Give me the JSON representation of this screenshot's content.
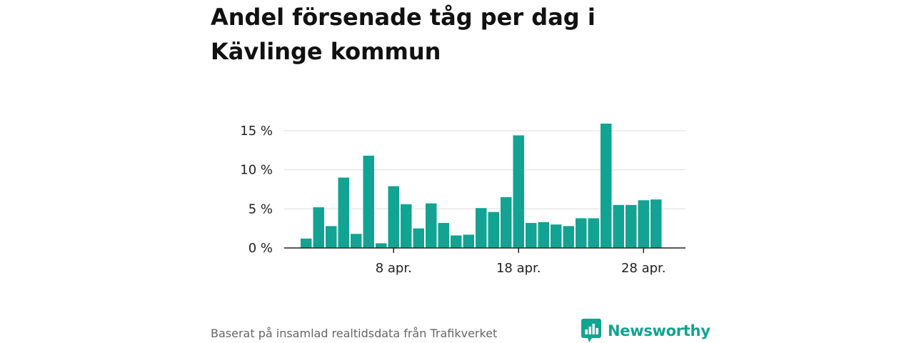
{
  "title": "Andel försenade tåg per dag i Kävlinge kommun",
  "footer": {
    "source": "Baserat på insamlad realtidsdata från Trafikverket",
    "brand": "Newsworthy"
  },
  "colors": {
    "bar": "#13a392",
    "brand": "#13a392",
    "grid": "#dddddd",
    "axis": "#222222"
  },
  "chart_data": {
    "type": "bar",
    "title": "Andel försenade tåg per dag i Kävlinge kommun",
    "xlabel": "",
    "ylabel": "",
    "x": [
      "1 apr.",
      "2 apr.",
      "3 apr.",
      "4 apr.",
      "5 apr.",
      "6 apr.",
      "7 apr.",
      "8 apr.",
      "9 apr.",
      "10 apr.",
      "11 apr.",
      "12 apr.",
      "13 apr.",
      "14 apr.",
      "15 apr.",
      "16 apr.",
      "17 apr.",
      "18 apr.",
      "19 apr.",
      "20 apr.",
      "21 apr.",
      "22 apr.",
      "23 apr.",
      "24 apr.",
      "25 apr.",
      "26 apr.",
      "27 apr.",
      "28 apr.",
      "29 apr."
    ],
    "values": [
      1.2,
      5.2,
      2.8,
      9.0,
      1.8,
      11.8,
      0.6,
      7.9,
      5.6,
      2.5,
      5.7,
      3.2,
      1.6,
      1.7,
      5.1,
      4.6,
      6.5,
      14.4,
      3.2,
      3.3,
      3.0,
      2.8,
      3.8,
      3.8,
      15.9,
      5.5,
      5.5,
      6.1,
      6.2
    ],
    "ylim": [
      0,
      15.9
    ],
    "yticks": [
      {
        "value": 0,
        "label": "0 %"
      },
      {
        "value": 5,
        "label": "5 %"
      },
      {
        "value": 10,
        "label": "10 %"
      },
      {
        "value": 15,
        "label": "15 %"
      }
    ],
    "xticks": [
      {
        "x": "8 apr.",
        "label": "8 apr."
      },
      {
        "x": "18 apr.",
        "label": "18 apr."
      },
      {
        "x": "28 apr.",
        "label": "28 apr."
      }
    ],
    "grid": true,
    "legend": "none"
  }
}
